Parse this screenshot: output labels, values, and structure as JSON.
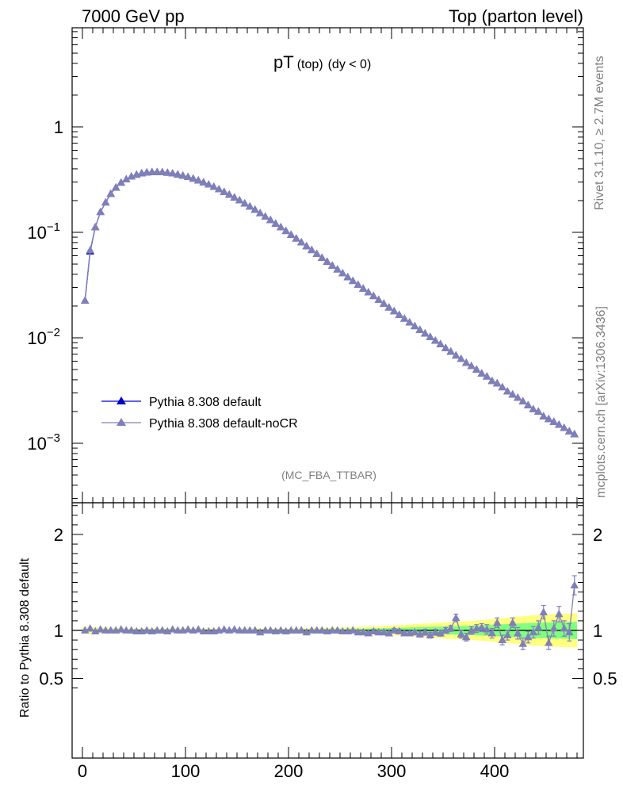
{
  "header": {
    "left": "7000 GeV pp",
    "right": "Top (parton level)"
  },
  "side_text": {
    "top": "Rivet 3.1.10, ≥ 2.7M events",
    "bottom": "mcplots.cern.ch [arXiv:1306.3436]"
  },
  "colors": {
    "default": "#0000cc",
    "noCR": "#8080b8",
    "band_yellow": "#ffff80",
    "band_green": "#80ff80"
  },
  "chart_data": [
    {
      "type": "line",
      "title": "pT (top) (dy < 0)",
      "title_main": "pT",
      "title_sub": "(top)",
      "title_cond": "(dy < 0)",
      "watermark": "(MC_FBA_TTBAR)",
      "yscale": "log",
      "xlim": [
        -10,
        485
      ],
      "ylim": [
        0.0003,
        8
      ],
      "y_tick_labels": [
        {
          "value": 1,
          "base": "1",
          "exp": ""
        },
        {
          "value": 0.1,
          "base": "10",
          "exp": "−1"
        },
        {
          "value": 0.01,
          "base": "10",
          "exp": "−2"
        },
        {
          "value": 0.001,
          "base": "10",
          "exp": "−3"
        }
      ],
      "legend_position": "bottom-left",
      "series": [
        {
          "name": "Pythia 8.308 default",
          "x": [
            2.5,
            7.5,
            12.5,
            17.5,
            22.5,
            27.5,
            32.5,
            37.5,
            42.5,
            47.5,
            52.5,
            57.5,
            62.5,
            67.5,
            72.5,
            77.5,
            82.5,
            87.5,
            92.5,
            97.5,
            102.5,
            107.5,
            112.5,
            117.5,
            122.5,
            127.5,
            132.5,
            137.5,
            142.5,
            147.5,
            152.5,
            157.5,
            162.5,
            167.5,
            172.5,
            177.5,
            182.5,
            187.5,
            192.5,
            197.5,
            202.5,
            207.5,
            212.5,
            217.5,
            222.5,
            227.5,
            232.5,
            237.5,
            242.5,
            247.5,
            252.5,
            257.5,
            262.5,
            267.5,
            272.5,
            277.5,
            282.5,
            287.5,
            292.5,
            297.5,
            302.5,
            307.5,
            312.5,
            317.5,
            322.5,
            327.5,
            332.5,
            337.5,
            342.5,
            347.5,
            352.5,
            357.5,
            362.5,
            367.5,
            372.5,
            377.5,
            382.5,
            387.5,
            392.5,
            397.5,
            402.5,
            407.5,
            412.5,
            417.5,
            422.5,
            427.5,
            432.5,
            437.5,
            442.5,
            447.5,
            452.5,
            457.5,
            462.5,
            467.5,
            472.5,
            477.5
          ],
          "y": [
            0.0225,
            0.066,
            0.112,
            0.156,
            0.192,
            0.232,
            0.266,
            0.296,
            0.318,
            0.338,
            0.352,
            0.363,
            0.37,
            0.373,
            0.373,
            0.372,
            0.368,
            0.362,
            0.354,
            0.345,
            0.335,
            0.323,
            0.311,
            0.298,
            0.284,
            0.27,
            0.256,
            0.242,
            0.228,
            0.214,
            0.201,
            0.188,
            0.176,
            0.164,
            0.152,
            0.141,
            0.131,
            0.121,
            0.112,
            0.103,
            0.095,
            0.0875,
            0.0805,
            0.074,
            0.068,
            0.0625,
            0.0574,
            0.0527,
            0.0484,
            0.0445,
            0.0409,
            0.0376,
            0.0346,
            0.0318,
            0.0293,
            0.027,
            0.0249,
            0.0229,
            0.0211,
            0.0194,
            0.0179,
            0.0165,
            0.0152,
            0.014,
            0.0129,
            0.0119,
            0.011,
            0.0102,
            0.0094,
            0.0087,
            0.008,
            0.0074,
            0.0068,
            0.0063,
            0.0058,
            0.0054,
            0.005,
            0.0046,
            0.0043,
            0.0039,
            0.0037,
            0.0034,
            0.0031,
            0.0029,
            0.0027,
            0.0025,
            0.0023,
            0.0021,
            0.002,
            0.0018,
            0.0017,
            0.0016,
            0.0015,
            0.0014,
            0.0013,
            0.00122
          ]
        },
        {
          "name": "Pythia 8.308 default-noCR",
          "x": [
            2.5,
            7.5,
            12.5,
            17.5,
            22.5,
            27.5,
            32.5,
            37.5,
            42.5,
            47.5,
            52.5,
            57.5,
            62.5,
            67.5,
            72.5,
            77.5,
            82.5,
            87.5,
            92.5,
            97.5,
            102.5,
            107.5,
            112.5,
            117.5,
            122.5,
            127.5,
            132.5,
            137.5,
            142.5,
            147.5,
            152.5,
            157.5,
            162.5,
            167.5,
            172.5,
            177.5,
            182.5,
            187.5,
            192.5,
            197.5,
            202.5,
            207.5,
            212.5,
            217.5,
            222.5,
            227.5,
            232.5,
            237.5,
            242.5,
            247.5,
            252.5,
            257.5,
            262.5,
            267.5,
            272.5,
            277.5,
            282.5,
            287.5,
            292.5,
            297.5,
            302.5,
            307.5,
            312.5,
            317.5,
            322.5,
            327.5,
            332.5,
            337.5,
            342.5,
            347.5,
            352.5,
            357.5,
            362.5,
            367.5,
            372.5,
            377.5,
            382.5,
            387.5,
            392.5,
            397.5,
            402.5,
            407.5,
            412.5,
            417.5,
            422.5,
            427.5,
            432.5,
            437.5,
            442.5,
            447.5,
            452.5,
            457.5,
            462.5,
            467.5,
            472.5,
            477.5
          ],
          "y": [
            0.0225,
            0.0677,
            0.112,
            0.156,
            0.192,
            0.232,
            0.266,
            0.296,
            0.318,
            0.338,
            0.352,
            0.363,
            0.37,
            0.373,
            0.373,
            0.372,
            0.368,
            0.362,
            0.354,
            0.345,
            0.335,
            0.323,
            0.311,
            0.298,
            0.284,
            0.27,
            0.256,
            0.242,
            0.228,
            0.214,
            0.201,
            0.188,
            0.176,
            0.164,
            0.152,
            0.141,
            0.131,
            0.121,
            0.112,
            0.103,
            0.095,
            0.0875,
            0.0805,
            0.074,
            0.068,
            0.0625,
            0.0574,
            0.0527,
            0.0484,
            0.0445,
            0.0409,
            0.0376,
            0.0346,
            0.0318,
            0.0293,
            0.027,
            0.0249,
            0.0229,
            0.0211,
            0.0194,
            0.0179,
            0.0165,
            0.0152,
            0.014,
            0.0129,
            0.0119,
            0.011,
            0.0102,
            0.0094,
            0.0087,
            0.008,
            0.0074,
            0.0068,
            0.0063,
            0.0058,
            0.0054,
            0.005,
            0.0046,
            0.0043,
            0.0039,
            0.0037,
            0.0034,
            0.0031,
            0.0029,
            0.0027,
            0.0025,
            0.0023,
            0.0021,
            0.002,
            0.0018,
            0.0017,
            0.0016,
            0.0015,
            0.0014,
            0.0013,
            0.00122
          ]
        }
      ]
    },
    {
      "type": "line",
      "ylabel": "Ratio to Pythia 8.308 default",
      "yscale": "linear",
      "xlim": [
        -10,
        485
      ],
      "ylim": [
        0.35,
        2.3
      ],
      "x_ticks": [
        0,
        100,
        200,
        300,
        400
      ],
      "y_ticks": [
        0.5,
        1,
        2
      ],
      "y_tick_labels": [
        "0.5",
        "1",
        "2"
      ],
      "reference_line": 1,
      "bands": {
        "x": [
          0,
          50,
          100,
          150,
          200,
          250,
          300,
          330,
          360,
          380,
          400,
          420,
          440,
          460,
          480
        ],
        "yellow_halfwidth": [
          0.035,
          0.02,
          0.02,
          0.02,
          0.02,
          0.03,
          0.05,
          0.07,
          0.09,
          0.1,
          0.12,
          0.14,
          0.16,
          0.17,
          0.18
        ],
        "green_halfwidth": [
          0.015,
          0.01,
          0.01,
          0.01,
          0.01,
          0.015,
          0.025,
          0.035,
          0.045,
          0.05,
          0.06,
          0.07,
          0.08,
          0.085,
          0.09
        ]
      },
      "series": [
        {
          "name": "Pythia 8.308 default-noCR",
          "x": [
            2.5,
            7.5,
            12.5,
            17.5,
            22.5,
            27.5,
            32.5,
            37.5,
            42.5,
            47.5,
            52.5,
            57.5,
            62.5,
            67.5,
            72.5,
            77.5,
            82.5,
            87.5,
            92.5,
            97.5,
            102.5,
            107.5,
            112.5,
            117.5,
            122.5,
            127.5,
            132.5,
            137.5,
            142.5,
            147.5,
            152.5,
            157.5,
            162.5,
            167.5,
            172.5,
            177.5,
            182.5,
            187.5,
            192.5,
            197.5,
            202.5,
            207.5,
            212.5,
            217.5,
            222.5,
            227.5,
            232.5,
            237.5,
            242.5,
            247.5,
            252.5,
            257.5,
            262.5,
            267.5,
            272.5,
            277.5,
            282.5,
            287.5,
            292.5,
            297.5,
            302.5,
            307.5,
            312.5,
            317.5,
            322.5,
            327.5,
            332.5,
            337.5,
            342.5,
            347.5,
            352.5,
            357.5,
            362.5,
            367.5,
            372.5,
            377.5,
            382.5,
            387.5,
            392.5,
            397.5,
            402.5,
            407.5,
            412.5,
            417.5,
            422.5,
            427.5,
            432.5,
            437.5,
            442.5,
            447.5,
            452.5,
            457.5,
            462.5,
            467.5,
            472.5,
            477.5
          ],
          "y": [
            1.0,
            1.02,
            0.99,
            1.01,
            1.0,
            1.0,
            1.0,
            1.01,
            1.0,
            1.0,
            0.99,
            0.99,
            1.0,
            0.99,
            1.0,
            1.0,
            0.99,
            1.01,
            1.0,
            1.0,
            1.01,
            1.0,
            1.01,
            0.99,
            0.99,
            0.99,
            1.0,
            1.01,
            1.0,
            1.01,
            1.0,
            1.0,
            1.0,
            1.0,
            0.98,
            1.0,
            1.0,
            0.99,
            1.0,
            0.99,
            1.0,
            1.0,
            1.0,
            0.98,
            1.0,
            1.0,
            1.0,
            0.99,
            1.0,
            1.0,
            0.99,
            0.99,
            1.0,
            0.98,
            0.98,
            0.97,
            0.99,
            0.98,
            0.98,
            0.97,
            1.0,
            0.99,
            0.97,
            0.97,
            0.98,
            0.96,
            0.98,
            0.95,
            0.98,
            0.97,
            1.0,
            1.02,
            1.13,
            0.96,
            0.93,
            1.0,
            1.02,
            1.03,
            1.01,
            0.97,
            1.08,
            0.9,
            0.95,
            1.08,
            0.97,
            0.86,
            0.93,
            0.98,
            1.03,
            1.19,
            0.87,
            1.02,
            1.17,
            1.02,
            0.98,
            1.47
          ],
          "err": [
            0.01,
            0.01,
            0.01,
            0.01,
            0.01,
            0.01,
            0.01,
            0.01,
            0.01,
            0.01,
            0.01,
            0.01,
            0.01,
            0.01,
            0.01,
            0.01,
            0.01,
            0.01,
            0.01,
            0.01,
            0.01,
            0.01,
            0.01,
            0.01,
            0.01,
            0.01,
            0.01,
            0.01,
            0.01,
            0.01,
            0.01,
            0.01,
            0.01,
            0.01,
            0.01,
            0.01,
            0.01,
            0.01,
            0.01,
            0.01,
            0.01,
            0.01,
            0.01,
            0.01,
            0.01,
            0.01,
            0.01,
            0.01,
            0.01,
            0.01,
            0.01,
            0.01,
            0.01,
            0.02,
            0.02,
            0.02,
            0.02,
            0.02,
            0.02,
            0.02,
            0.02,
            0.02,
            0.02,
            0.02,
            0.02,
            0.03,
            0.03,
            0.03,
            0.03,
            0.03,
            0.03,
            0.03,
            0.04,
            0.04,
            0.04,
            0.04,
            0.04,
            0.04,
            0.05,
            0.05,
            0.05,
            0.05,
            0.05,
            0.05,
            0.06,
            0.06,
            0.06,
            0.06,
            0.07,
            0.07,
            0.07,
            0.08,
            0.08,
            0.08,
            0.09,
            0.1
          ]
        }
      ]
    }
  ]
}
